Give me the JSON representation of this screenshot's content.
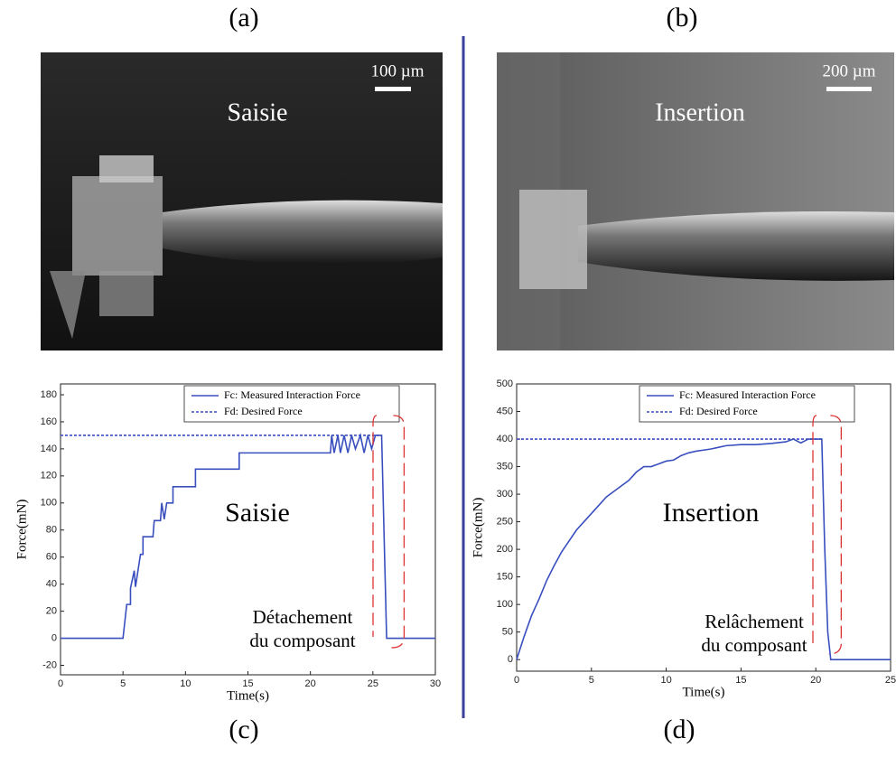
{
  "panels": [
    "(a)",
    "(b)",
    "(c)",
    "(d)"
  ],
  "photos": [
    {
      "label": "Saisie",
      "scale": "100 µm"
    },
    {
      "label": "Insertion",
      "scale": "200 µm"
    }
  ],
  "chart_data": [
    {
      "type": "line",
      "title": "Saisie",
      "xlabel": "Time(s)",
      "ylabel": "Force(mN)",
      "annotation": [
        "Détachement",
        "du composant"
      ],
      "xlim": [
        0,
        30
      ],
      "xticks": [
        0,
        5,
        10,
        15,
        20,
        25,
        30
      ],
      "ylim": [
        -27,
        188
      ],
      "yticks": [
        -20,
        0,
        20,
        40,
        60,
        80,
        100,
        120,
        140,
        160,
        180
      ],
      "legend": "upper right",
      "series": [
        {
          "name": "Fc: Measured Interaction Force",
          "color": "#3a4fbf",
          "linestyle": "solid",
          "x": [
            0,
            5,
            5.3,
            5.6,
            5.6,
            5.9,
            6.0,
            6.2,
            6.4,
            6.6,
            6.6,
            7.4,
            7.5,
            8.0,
            8.1,
            8.3,
            8.5,
            9,
            9,
            9.6,
            10.8,
            10.8,
            14.3,
            14.3,
            21.6,
            21.7,
            21.9,
            22.2,
            22.4,
            22.7,
            23,
            23.3,
            23.6,
            24,
            24.3,
            24.6,
            24.9,
            25.2,
            25.7,
            25.9,
            26.1,
            30
          ],
          "values": [
            0,
            0,
            25,
            25,
            37,
            50,
            38,
            50,
            62,
            62,
            75,
            75,
            87,
            87,
            100,
            88,
            100,
            100,
            112,
            112,
            112,
            125,
            125,
            137,
            137,
            150,
            137,
            150,
            137,
            150,
            137,
            150,
            140,
            150,
            137,
            150,
            140,
            150,
            150,
            75,
            0,
            0
          ]
        },
        {
          "name": "Fd: Desired Force",
          "color": "#3a4fbf",
          "linestyle": "dashed",
          "x": [
            0,
            25.7
          ],
          "values": [
            150,
            150
          ]
        }
      ]
    },
    {
      "type": "line",
      "title": "Insertion",
      "xlabel": "Time(s)",
      "ylabel": "Force(mN)",
      "annotation": [
        "Relâchement",
        "du composant"
      ],
      "xlim": [
        0,
        25
      ],
      "xticks": [
        0,
        5,
        10,
        15,
        20,
        25
      ],
      "ylim": [
        -21,
        500
      ],
      "yticks": [
        0,
        50,
        100,
        150,
        200,
        250,
        300,
        350,
        400,
        450,
        500
      ],
      "legend": "upper right",
      "series": [
        {
          "name": "Fc: Measured Interaction Force",
          "color": "#3a4fbf",
          "linestyle": "solid",
          "x": [
            0,
            0.5,
            1,
            1.5,
            2,
            2.5,
            3,
            3.5,
            4,
            4.5,
            5,
            5.5,
            6,
            6.5,
            7,
            7.5,
            8,
            8.5,
            9,
            9.5,
            10,
            10.5,
            11,
            11.5,
            12,
            12.5,
            13,
            13.5,
            14,
            15,
            16,
            17,
            18,
            18.5,
            19,
            19.5,
            20,
            20.4,
            20.6,
            20.8,
            21,
            25
          ],
          "values": [
            0,
            42,
            80,
            110,
            143,
            170,
            195,
            215,
            235,
            250,
            265,
            280,
            295,
            305,
            315,
            325,
            340,
            350,
            350,
            355,
            360,
            362,
            370,
            375,
            378,
            380,
            382,
            385,
            388,
            390,
            390,
            392,
            395,
            400,
            393,
            400,
            400,
            400,
            200,
            50,
            0,
            0
          ]
        },
        {
          "name": "Fd: Desired Force",
          "color": "#3a4fbf",
          "linestyle": "dashed",
          "x": [
            0,
            20.4
          ],
          "values": [
            400,
            400
          ]
        }
      ]
    }
  ]
}
